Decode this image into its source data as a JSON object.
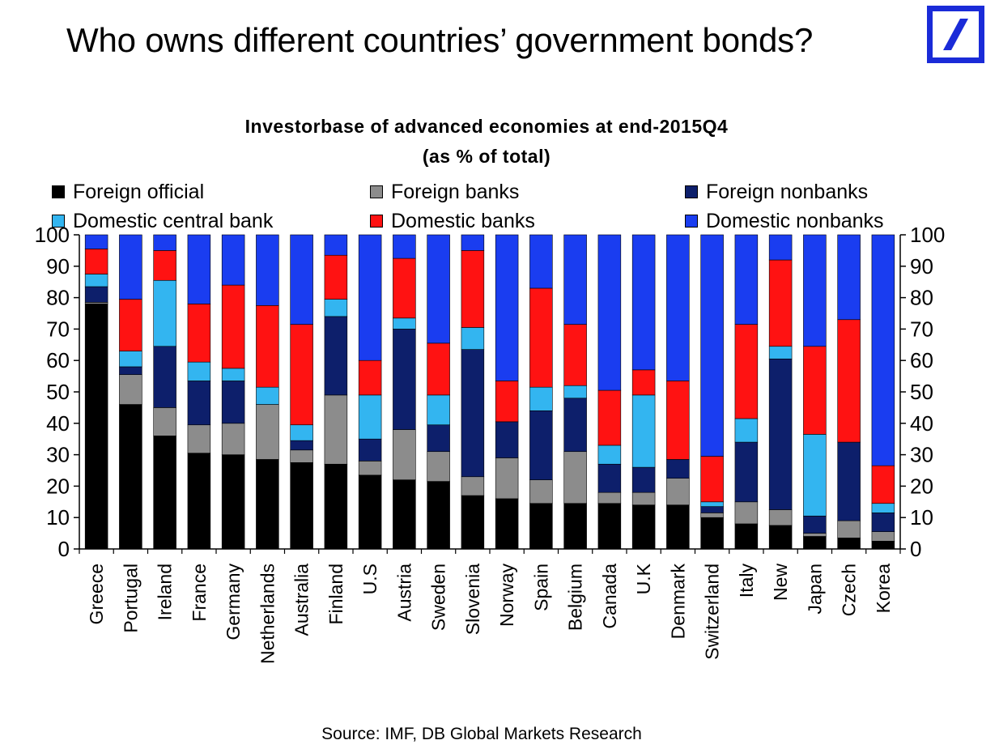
{
  "header": {
    "title": "Who owns different countries’ government bonds?"
  },
  "source": "Source: IMF, DB Global Markets Research",
  "chart_data": {
    "type": "bar",
    "stacked": true,
    "title": "Investorbase of advanced economies at end-2015Q4",
    "subtitle": "(as % of total)",
    "ylim": [
      0,
      100
    ],
    "yticks": [
      0,
      10,
      20,
      30,
      40,
      50,
      60,
      70,
      80,
      90,
      100
    ],
    "legend_position": "top",
    "categories": [
      "Greece",
      "Portugal",
      "Ireland",
      "France",
      "Germany",
      "Netherlands",
      "Australia",
      "Finland",
      "U.S",
      "Austria",
      "Sweden",
      "Slovenia",
      "Norway",
      "Spain",
      "Belgium",
      "Canada",
      "U.K",
      "Denmark",
      "Switzerland",
      "Italy",
      "New",
      "Japan",
      "Czech",
      "Korea"
    ],
    "series": [
      {
        "name": "Foreign official",
        "color": "#000000",
        "values": [
          78,
          46,
          36,
          30.5,
          30,
          28.5,
          27.5,
          27,
          23.5,
          22,
          21.5,
          17,
          16,
          14.5,
          14.5,
          14.5,
          14,
          14,
          10,
          8,
          7.5,
          4,
          3.5,
          2.5
        ]
      },
      {
        "name": "Foreign banks",
        "color": "#8c8c8c",
        "values": [
          0.5,
          9.5,
          9,
          9,
          10,
          17.5,
          4,
          22,
          4.5,
          16,
          9.5,
          6,
          13,
          7.5,
          16.5,
          3.5,
          4,
          8.5,
          1.5,
          7,
          5,
          1,
          5.5,
          3
        ]
      },
      {
        "name": "Foreign nonbanks",
        "color": "#0d1f6b",
        "values": [
          5,
          2.5,
          19.5,
          14,
          13.5,
          0,
          3,
          25,
          7,
          32,
          8.5,
          40.5,
          11.5,
          22,
          17,
          9,
          8,
          6,
          2,
          19,
          48,
          5.5,
          25,
          6
        ]
      },
      {
        "name": "Domestic central bank",
        "color": "#33b5f0",
        "values": [
          4,
          5,
          21,
          6,
          4,
          5.5,
          5,
          5.5,
          14,
          3.5,
          9.5,
          7,
          0,
          7.5,
          4,
          6,
          23,
          0,
          1.5,
          7.5,
          4,
          26,
          0,
          3
        ]
      },
      {
        "name": "Domestic banks",
        "color": "#ff1212",
        "values": [
          8,
          16.5,
          9.5,
          18.5,
          26.5,
          26,
          32,
          14,
          11,
          19,
          16.5,
          24.5,
          13,
          31.5,
          19.5,
          17.5,
          8,
          25,
          14.5,
          30,
          27.5,
          28,
          39,
          12
        ]
      },
      {
        "name": "Domestic nonbanks",
        "color": "#1a3df0",
        "values": [
          4.5,
          20.5,
          5,
          22,
          16,
          22.5,
          28.5,
          6.5,
          40,
          7.5,
          34.5,
          5,
          46.5,
          17,
          28.5,
          49.5,
          43,
          46.5,
          70.5,
          28.5,
          8,
          35.5,
          27,
          73.5
        ]
      }
    ]
  }
}
